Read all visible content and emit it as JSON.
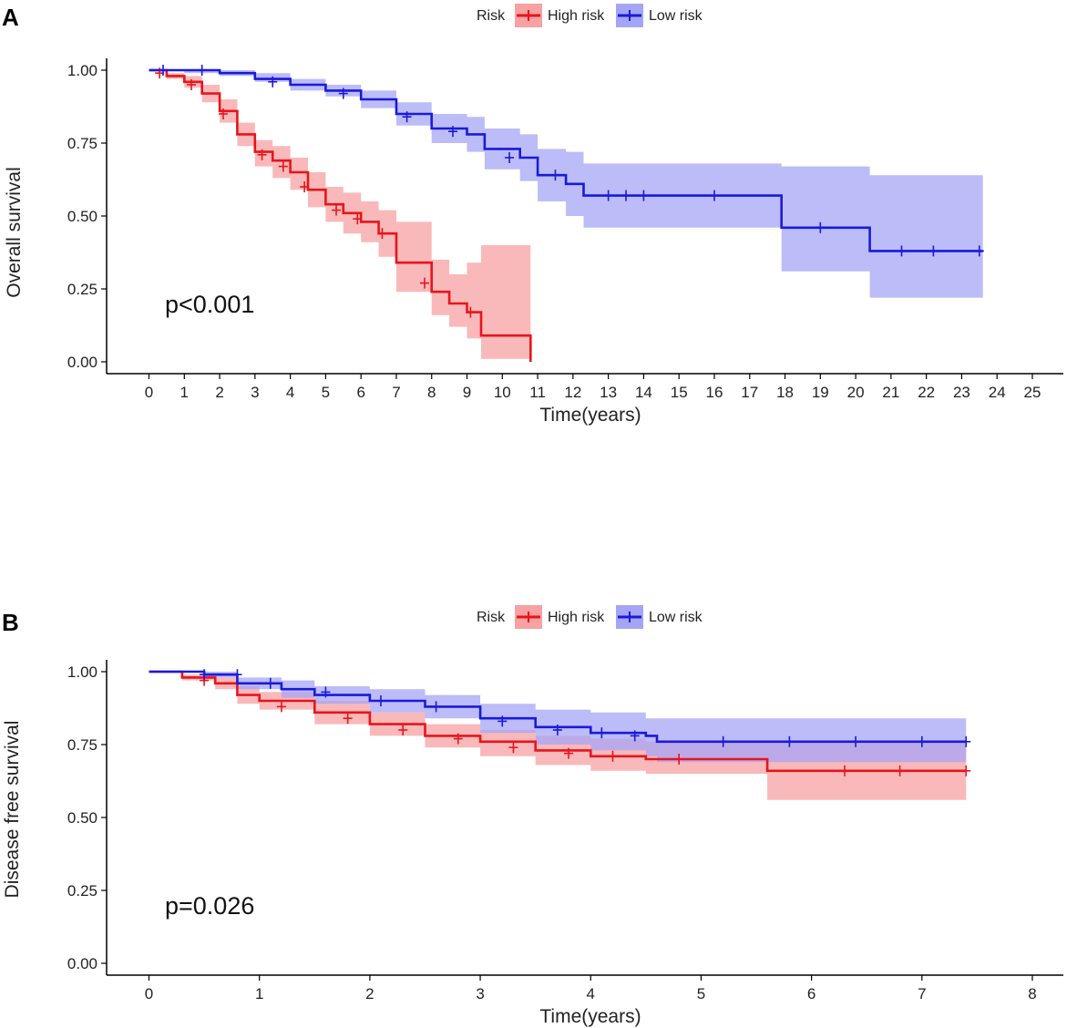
{
  "panels": [
    {
      "label": "A",
      "type": "line",
      "legend_title": "Risk",
      "ylabel": "Overall survival",
      "xlabel": "Time(years)",
      "pvalue": "p<0.001",
      "xlim": [
        0,
        25
      ],
      "ylim": [
        0,
        1
      ],
      "x_ticks": [
        0,
        1,
        2,
        3,
        4,
        5,
        6,
        7,
        8,
        9,
        10,
        11,
        12,
        13,
        14,
        15,
        16,
        17,
        18,
        19,
        20,
        21,
        22,
        23,
        24,
        25
      ],
      "y_ticks": [
        "0.00",
        "0.25",
        "0.50",
        "0.75",
        "1.00"
      ],
      "series": [
        {
          "name": "High risk",
          "color": "#e8141b",
          "band_color": "#f7a1a3",
          "points": [
            [
              0,
              1.0
            ],
            [
              0.5,
              0.98
            ],
            [
              1,
              0.96
            ],
            [
              1.5,
              0.92
            ],
            [
              2,
              0.86
            ],
            [
              2.5,
              0.78
            ],
            [
              3,
              0.72
            ],
            [
              3.5,
              0.69
            ],
            [
              4,
              0.65
            ],
            [
              4.5,
              0.59
            ],
            [
              5,
              0.54
            ],
            [
              5.5,
              0.51
            ],
            [
              6,
              0.48
            ],
            [
              6.5,
              0.44
            ],
            [
              7,
              0.34
            ],
            [
              7.5,
              0.34
            ],
            [
              8,
              0.24
            ],
            [
              8.5,
              0.2
            ],
            [
              9,
              0.17
            ],
            [
              9.4,
              0.09
            ],
            [
              10.8,
              0.0
            ]
          ],
          "lower": [
            [
              0,
              1.0
            ],
            [
              0.5,
              0.97
            ],
            [
              1,
              0.94
            ],
            [
              1.5,
              0.89
            ],
            [
              2,
              0.82
            ],
            [
              2.5,
              0.74
            ],
            [
              3,
              0.67
            ],
            [
              3.5,
              0.63
            ],
            [
              4,
              0.59
            ],
            [
              4.5,
              0.53
            ],
            [
              5,
              0.48
            ],
            [
              5.5,
              0.44
            ],
            [
              6,
              0.41
            ],
            [
              6.5,
              0.36
            ],
            [
              7,
              0.24
            ],
            [
              7.5,
              0.24
            ],
            [
              8,
              0.16
            ],
            [
              8.5,
              0.12
            ],
            [
              9,
              0.08
            ],
            [
              9.4,
              0.01
            ],
            [
              10.8,
              0.0
            ]
          ],
          "upper": [
            [
              0,
              1.0
            ],
            [
              0.5,
              0.99
            ],
            [
              1,
              0.98
            ],
            [
              1.5,
              0.95
            ],
            [
              2,
              0.9
            ],
            [
              2.5,
              0.82
            ],
            [
              3,
              0.76
            ],
            [
              3.5,
              0.74
            ],
            [
              4,
              0.7
            ],
            [
              4.5,
              0.65
            ],
            [
              5,
              0.6
            ],
            [
              5.5,
              0.58
            ],
            [
              6,
              0.55
            ],
            [
              6.5,
              0.52
            ],
            [
              7,
              0.48
            ],
            [
              7.5,
              0.48
            ],
            [
              8,
              0.35
            ],
            [
              8.5,
              0.3
            ],
            [
              9,
              0.34
            ],
            [
              9.4,
              0.4
            ],
            [
              10.8,
              0.4
            ]
          ],
          "censors": [
            [
              0.3,
              0.99
            ],
            [
              1.2,
              0.95
            ],
            [
              2.1,
              0.85
            ],
            [
              3.2,
              0.71
            ],
            [
              3.8,
              0.67
            ],
            [
              4.4,
              0.6
            ],
            [
              5.3,
              0.52
            ],
            [
              5.9,
              0.49
            ],
            [
              6.6,
              0.44
            ],
            [
              7.8,
              0.27
            ],
            [
              9.1,
              0.17
            ]
          ]
        },
        {
          "name": "Low risk",
          "color": "#1a1adb",
          "band_color": "#a5a5f5",
          "points": [
            [
              0,
              1.0
            ],
            [
              1,
              1.0
            ],
            [
              2,
              0.99
            ],
            [
              3,
              0.97
            ],
            [
              4,
              0.95
            ],
            [
              5,
              0.93
            ],
            [
              6,
              0.9
            ],
            [
              7,
              0.85
            ],
            [
              8,
              0.8
            ],
            [
              9,
              0.78
            ],
            [
              9.5,
              0.73
            ],
            [
              10.5,
              0.7
            ],
            [
              11,
              0.64
            ],
            [
              11.8,
              0.61
            ],
            [
              12.3,
              0.57
            ],
            [
              17.6,
              0.57
            ],
            [
              17.9,
              0.46
            ],
            [
              20.4,
              0.38
            ],
            [
              23.6,
              0.38
            ]
          ],
          "lower": [
            [
              0,
              1.0
            ],
            [
              1,
              0.99
            ],
            [
              2,
              0.98
            ],
            [
              3,
              0.96
            ],
            [
              4,
              0.93
            ],
            [
              5,
              0.91
            ],
            [
              6,
              0.87
            ],
            [
              7,
              0.81
            ],
            [
              8,
              0.75
            ],
            [
              9,
              0.72
            ],
            [
              9.5,
              0.66
            ],
            [
              10.5,
              0.62
            ],
            [
              11,
              0.55
            ],
            [
              11.8,
              0.5
            ],
            [
              12.3,
              0.46
            ],
            [
              17.6,
              0.46
            ],
            [
              17.9,
              0.31
            ],
            [
              20.4,
              0.22
            ],
            [
              23.6,
              0.22
            ]
          ],
          "upper": [
            [
              0,
              1.0
            ],
            [
              1,
              1.0
            ],
            [
              2,
              1.0
            ],
            [
              3,
              0.99
            ],
            [
              4,
              0.97
            ],
            [
              5,
              0.95
            ],
            [
              6,
              0.93
            ],
            [
              7,
              0.89
            ],
            [
              8,
              0.85
            ],
            [
              9,
              0.84
            ],
            [
              9.5,
              0.8
            ],
            [
              10.5,
              0.78
            ],
            [
              11,
              0.73
            ],
            [
              11.8,
              0.72
            ],
            [
              12.3,
              0.68
            ],
            [
              17.6,
              0.68
            ],
            [
              17.9,
              0.67
            ],
            [
              20.4,
              0.64
            ],
            [
              23.6,
              0.64
            ]
          ],
          "censors": [
            [
              0.4,
              1.0
            ],
            [
              1.5,
              1.0
            ],
            [
              3.5,
              0.96
            ],
            [
              5.5,
              0.92
            ],
            [
              7.3,
              0.84
            ],
            [
              8.6,
              0.79
            ],
            [
              10.2,
              0.7
            ],
            [
              11.5,
              0.64
            ],
            [
              13,
              0.57
            ],
            [
              13.5,
              0.57
            ],
            [
              14,
              0.57
            ],
            [
              16,
              0.57
            ],
            [
              19,
              0.46
            ],
            [
              21.3,
              0.38
            ],
            [
              22.2,
              0.38
            ],
            [
              23.5,
              0.38
            ]
          ]
        }
      ]
    },
    {
      "label": "B",
      "type": "line",
      "legend_title": "Risk",
      "ylabel": "Disease free survival",
      "xlabel": "Time(years)",
      "pvalue": "p=0.026",
      "xlim": [
        0,
        8
      ],
      "ylim": [
        0,
        1
      ],
      "x_ticks": [
        0,
        1,
        2,
        3,
        4,
        5,
        6,
        7,
        8
      ],
      "y_ticks": [
        "0.00",
        "0.25",
        "0.50",
        "0.75",
        "1.00"
      ],
      "series": [
        {
          "name": "High risk",
          "color": "#e8141b",
          "band_color": "#f7a1a3",
          "points": [
            [
              0,
              1.0
            ],
            [
              0.3,
              0.98
            ],
            [
              0.6,
              0.96
            ],
            [
              0.8,
              0.92
            ],
            [
              1,
              0.9
            ],
            [
              1.5,
              0.86
            ],
            [
              2,
              0.82
            ],
            [
              2.5,
              0.78
            ],
            [
              3,
              0.76
            ],
            [
              3.5,
              0.73
            ],
            [
              4,
              0.71
            ],
            [
              4.5,
              0.7
            ],
            [
              5,
              0.7
            ],
            [
              5.6,
              0.66
            ],
            [
              7.4,
              0.66
            ]
          ],
          "lower": [
            [
              0,
              1.0
            ],
            [
              0.3,
              0.97
            ],
            [
              0.6,
              0.94
            ],
            [
              0.8,
              0.89
            ],
            [
              1,
              0.87
            ],
            [
              1.5,
              0.82
            ],
            [
              2,
              0.78
            ],
            [
              2.5,
              0.74
            ],
            [
              3,
              0.71
            ],
            [
              3.5,
              0.68
            ],
            [
              4,
              0.66
            ],
            [
              4.5,
              0.65
            ],
            [
              5,
              0.65
            ],
            [
              5.6,
              0.56
            ],
            [
              7.4,
              0.56
            ]
          ],
          "upper": [
            [
              0,
              1.0
            ],
            [
              0.3,
              0.99
            ],
            [
              0.6,
              0.98
            ],
            [
              0.8,
              0.95
            ],
            [
              1,
              0.93
            ],
            [
              1.5,
              0.9
            ],
            [
              2,
              0.86
            ],
            [
              2.5,
              0.82
            ],
            [
              3,
              0.8
            ],
            [
              3.5,
              0.78
            ],
            [
              4,
              0.77
            ],
            [
              4.5,
              0.76
            ],
            [
              5,
              0.76
            ],
            [
              5.6,
              0.76
            ],
            [
              7.4,
              0.76
            ]
          ],
          "censors": [
            [
              0.5,
              0.97
            ],
            [
              1.2,
              0.88
            ],
            [
              1.8,
              0.84
            ],
            [
              2.3,
              0.8
            ],
            [
              2.8,
              0.77
            ],
            [
              3.3,
              0.74
            ],
            [
              3.8,
              0.72
            ],
            [
              4.2,
              0.71
            ],
            [
              4.8,
              0.7
            ],
            [
              6.3,
              0.66
            ],
            [
              6.8,
              0.66
            ],
            [
              7.4,
              0.66
            ]
          ]
        },
        {
          "name": "Low risk",
          "color": "#1a1adb",
          "band_color": "#a5a5f5",
          "points": [
            [
              0,
              1.0
            ],
            [
              0.5,
              0.99
            ],
            [
              0.8,
              0.96
            ],
            [
              1.2,
              0.94
            ],
            [
              1.5,
              0.92
            ],
            [
              2,
              0.9
            ],
            [
              2.5,
              0.88
            ],
            [
              3,
              0.84
            ],
            [
              3.5,
              0.81
            ],
            [
              4,
              0.79
            ],
            [
              4.5,
              0.78
            ],
            [
              4.6,
              0.76
            ],
            [
              7.4,
              0.76
            ]
          ],
          "lower": [
            [
              0,
              1.0
            ],
            [
              0.5,
              0.98
            ],
            [
              0.8,
              0.94
            ],
            [
              1.2,
              0.91
            ],
            [
              1.5,
              0.89
            ],
            [
              2,
              0.86
            ],
            [
              2.5,
              0.84
            ],
            [
              3,
              0.79
            ],
            [
              3.5,
              0.75
            ],
            [
              4,
              0.73
            ],
            [
              4.5,
              0.71
            ],
            [
              4.6,
              0.69
            ],
            [
              7.4,
              0.69
            ]
          ],
          "upper": [
            [
              0,
              1.0
            ],
            [
              0.5,
              1.0
            ],
            [
              0.8,
              0.98
            ],
            [
              1.2,
              0.97
            ],
            [
              1.5,
              0.95
            ],
            [
              2,
              0.94
            ],
            [
              2.5,
              0.92
            ],
            [
              3,
              0.89
            ],
            [
              3.5,
              0.87
            ],
            [
              4,
              0.86
            ],
            [
              4.5,
              0.84
            ],
            [
              4.6,
              0.84
            ],
            [
              7.4,
              0.84
            ]
          ],
          "censors": [
            [
              0.5,
              0.99
            ],
            [
              0.8,
              0.99
            ],
            [
              1.1,
              0.96
            ],
            [
              1.6,
              0.93
            ],
            [
              2.1,
              0.9
            ],
            [
              2.6,
              0.88
            ],
            [
              3.2,
              0.83
            ],
            [
              3.7,
              0.8
            ],
            [
              4.1,
              0.79
            ],
            [
              4.4,
              0.78
            ],
            [
              5.2,
              0.76
            ],
            [
              5.8,
              0.76
            ],
            [
              6.4,
              0.76
            ],
            [
              7.0,
              0.76
            ],
            [
              7.4,
              0.76
            ]
          ]
        }
      ]
    }
  ]
}
